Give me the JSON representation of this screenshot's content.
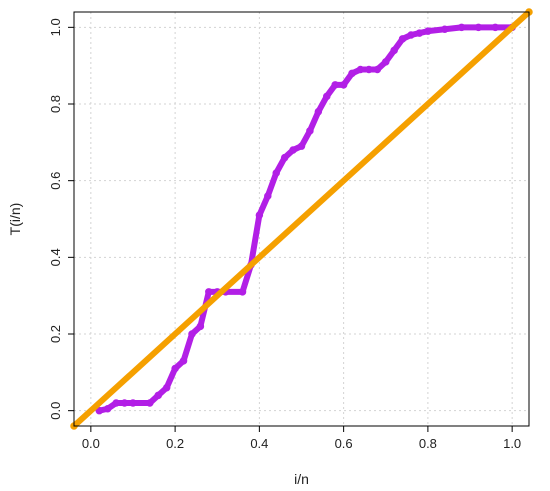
{
  "chart_data": {
    "type": "line",
    "title": "",
    "xlabel": "i/n",
    "ylabel": "T(i/n)",
    "xlim": [
      -0.04,
      1.04
    ],
    "ylim": [
      -0.04,
      1.04
    ],
    "x_ticks": [
      0.0,
      0.2,
      0.4,
      0.6,
      0.8,
      1.0
    ],
    "y_ticks": [
      0.0,
      0.2,
      0.4,
      0.6,
      0.8,
      1.0
    ],
    "x_tick_labels": [
      "0.0",
      "0.2",
      "0.4",
      "0.6",
      "0.8",
      "1.0"
    ],
    "y_tick_labels": [
      "0.0",
      "0.2",
      "0.4",
      "0.6",
      "0.8",
      "1.0"
    ],
    "grid": true,
    "series": [
      {
        "color": "#b21fe6",
        "style": "thick points",
        "points": [
          [
            0.02,
            0.0
          ],
          [
            0.04,
            0.005
          ],
          [
            0.06,
            0.02
          ],
          [
            0.08,
            0.02
          ],
          [
            0.1,
            0.02
          ],
          [
            0.14,
            0.02
          ],
          [
            0.16,
            0.04
          ],
          [
            0.18,
            0.06
          ],
          [
            0.2,
            0.11
          ],
          [
            0.22,
            0.13
          ],
          [
            0.24,
            0.2
          ],
          [
            0.26,
            0.22
          ],
          [
            0.28,
            0.31
          ],
          [
            0.3,
            0.31
          ],
          [
            0.32,
            0.31
          ],
          [
            0.36,
            0.31
          ],
          [
            0.38,
            0.38
          ],
          [
            0.4,
            0.51
          ],
          [
            0.42,
            0.56
          ],
          [
            0.44,
            0.62
          ],
          [
            0.46,
            0.66
          ],
          [
            0.48,
            0.68
          ],
          [
            0.5,
            0.69
          ],
          [
            0.52,
            0.73
          ],
          [
            0.54,
            0.78
          ],
          [
            0.56,
            0.82
          ],
          [
            0.58,
            0.85
          ],
          [
            0.6,
            0.85
          ],
          [
            0.62,
            0.88
          ],
          [
            0.64,
            0.89
          ],
          [
            0.66,
            0.89
          ],
          [
            0.68,
            0.89
          ],
          [
            0.7,
            0.91
          ],
          [
            0.72,
            0.94
          ],
          [
            0.74,
            0.97
          ],
          [
            0.76,
            0.98
          ],
          [
            0.78,
            0.985
          ],
          [
            0.8,
            0.99
          ],
          [
            0.84,
            0.995
          ],
          [
            0.88,
            1.0
          ],
          [
            0.92,
            1.0
          ],
          [
            0.96,
            1.0
          ],
          [
            1.0,
            1.0
          ]
        ]
      },
      {
        "color": "#f5a000",
        "style": "thick points",
        "points": [
          [
            -0.04,
            -0.04
          ],
          [
            1.04,
            1.04
          ]
        ]
      }
    ]
  }
}
